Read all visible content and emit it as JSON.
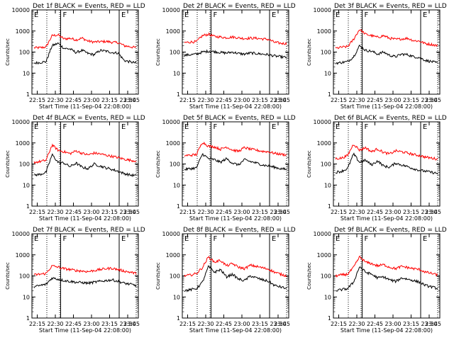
{
  "chart_data": [
    {
      "type": "line",
      "title": "Det 1f BLACK = Events, RED = LLD",
      "xlabel": "Start Time (11-Sep-04 22:08:00)",
      "ylabel": "Counts/sec",
      "x_ticks": [
        "22:15",
        "22:30",
        "22:45",
        "23:00",
        "23:15",
        "23:30",
        "23:45"
      ],
      "y_ticks": [
        "1",
        "10",
        "100",
        "1000",
        "10000"
      ],
      "ylog": true,
      "ylim": [
        1,
        10000
      ],
      "markers": [
        "E",
        "F",
        "E"
      ],
      "series": [
        {
          "color": "#000000",
          "values": [
            30,
            32,
            35,
            200,
            260,
            150,
            140,
            95,
            120,
            85,
            75,
            120,
            110,
            95,
            90,
            40,
            34,
            30
          ]
        },
        {
          "color": "#ff0000",
          "values": [
            160,
            160,
            175,
            600,
            650,
            420,
            450,
            380,
            460,
            330,
            300,
            310,
            320,
            290,
            280,
            200,
            180,
            160
          ]
        }
      ]
    },
    {
      "type": "line",
      "title": "Det 2f BLACK = Events, RED = LLD",
      "xlabel": "Start Time (11-Sep-04 22:08:00)",
      "ylabel": "Counts/sec",
      "x_ticks": [
        "22:15",
        "22:30",
        "22:45",
        "23:00",
        "23:15",
        "23:30",
        "23:45"
      ],
      "y_ticks": [
        "1",
        "10",
        "100",
        "1000",
        "10000"
      ],
      "ylog": true,
      "ylim": [
        1,
        10000
      ],
      "markers": [
        "E",
        "F",
        "E"
      ],
      "series": [
        {
          "color": "#000000",
          "values": [
            70,
            75,
            80,
            100,
            110,
            105,
            95,
            90,
            100,
            85,
            80,
            90,
            85,
            80,
            75,
            65,
            60,
            55
          ]
        },
        {
          "color": "#ff0000",
          "values": [
            280,
            300,
            310,
            600,
            700,
            550,
            520,
            480,
            520,
            470,
            440,
            460,
            450,
            420,
            400,
            290,
            260,
            250
          ]
        }
      ]
    },
    {
      "type": "line",
      "title": "Det 3f BLACK = Events, RED = LLD",
      "xlabel": "Start Time (11-Sep-04 22:08:00)",
      "ylabel": "Counts/sec",
      "x_ticks": [
        "22:15",
        "22:30",
        "22:45",
        "23:00",
        "23:15",
        "23:30",
        "23:45"
      ],
      "y_ticks": [
        "1",
        "10",
        "100",
        "1000",
        "10000"
      ],
      "ylog": true,
      "ylim": [
        1,
        10000
      ],
      "markers": [
        "E",
        "F",
        "E"
      ],
      "series": [
        {
          "color": "#000000",
          "values": [
            30,
            32,
            35,
            60,
            200,
            120,
            110,
            80,
            100,
            70,
            60,
            80,
            75,
            60,
            55,
            40,
            35,
            30
          ]
        },
        {
          "color": "#ff0000",
          "values": [
            150,
            170,
            180,
            400,
            1200,
            700,
            600,
            500,
            600,
            450,
            400,
            420,
            450,
            350,
            330,
            250,
            230,
            200
          ]
        }
      ]
    },
    {
      "type": "line",
      "title": "Det 4f BLACK = Events, RED = LLD",
      "xlabel": "Start Time (11-Sep-04 22:08:00)",
      "ylabel": "Counts/sec",
      "x_ticks": [
        "22:15",
        "22:30",
        "22:45",
        "23:00",
        "23:15",
        "23:30",
        "23:45"
      ],
      "y_ticks": [
        "1",
        "10",
        "100",
        "1000",
        "10000"
      ],
      "ylog": true,
      "ylim": [
        1,
        10000
      ],
      "markers": [
        "E",
        "F",
        "E"
      ],
      "series": [
        {
          "color": "#000000",
          "values": [
            30,
            32,
            40,
            280,
            120,
            110,
            75,
            110,
            70,
            60,
            100,
            80,
            65,
            55,
            45,
            35,
            30,
            28
          ]
        },
        {
          "color": "#ff0000",
          "values": [
            120,
            130,
            150,
            800,
            450,
            380,
            310,
            420,
            320,
            270,
            330,
            300,
            260,
            230,
            200,
            170,
            150,
            140
          ]
        }
      ]
    },
    {
      "type": "line",
      "title": "Det 5f BLACK = Events, RED = LLD",
      "xlabel": "Start Time (11-Sep-04 22:08:00)",
      "ylabel": "Counts/sec",
      "x_ticks": [
        "22:15",
        "22:30",
        "22:45",
        "23:00",
        "23:15",
        "23:30",
        "23:45"
      ],
      "y_ticks": [
        "1",
        "10",
        "100",
        "1000",
        "10000"
      ],
      "ylog": true,
      "ylim": [
        1,
        10000
      ],
      "markers": [
        "E",
        "F",
        "E"
      ],
      "series": [
        {
          "color": "#000000",
          "values": [
            55,
            60,
            65,
            300,
            180,
            160,
            120,
            180,
            110,
            90,
            160,
            130,
            110,
            90,
            80,
            70,
            60,
            55
          ]
        },
        {
          "color": "#ff0000",
          "values": [
            250,
            260,
            280,
            1100,
            700,
            650,
            500,
            650,
            460,
            400,
            600,
            500,
            450,
            400,
            380,
            320,
            290,
            270
          ]
        }
      ]
    },
    {
      "type": "line",
      "title": "Det 6f BLACK = Events, RED = LLD",
      "xlabel": "Start Time (11-Sep-04 22:08:00)",
      "ylabel": "Counts/sec",
      "x_ticks": [
        "22:15",
        "22:30",
        "22:45",
        "23:00",
        "23:15",
        "23:30",
        "23:45"
      ],
      "y_ticks": [
        "1",
        "10",
        "100",
        "1000",
        "10000"
      ],
      "ylog": true,
      "ylim": [
        1,
        10000
      ],
      "markers": [
        "E",
        "F",
        "E"
      ],
      "series": [
        {
          "color": "#000000",
          "values": [
            40,
            45,
            60,
            300,
            120,
            150,
            90,
            140,
            80,
            70,
            110,
            90,
            75,
            60,
            50,
            45,
            40,
            35
          ]
        },
        {
          "color": "#ff0000",
          "values": [
            180,
            190,
            250,
            900,
            450,
            600,
            380,
            520,
            350,
            300,
            420,
            380,
            330,
            280,
            250,
            210,
            190,
            170
          ]
        }
      ]
    },
    {
      "type": "line",
      "title": "Det 7f BLACK = Events, RED = LLD",
      "xlabel": "Start Time (11-Sep-04 22:08:00)",
      "ylabel": "Counts/sec",
      "x_ticks": [
        "22:15",
        "22:30",
        "22:45",
        "23:00",
        "23:15",
        "23:30",
        "23:45"
      ],
      "y_ticks": [
        "1",
        "10",
        "100",
        "1000",
        "10000"
      ],
      "ylog": true,
      "ylim": [
        1,
        10000
      ],
      "markers": [
        "E",
        "F",
        "E"
      ],
      "series": [
        {
          "color": "#000000",
          "values": [
            30,
            35,
            40,
            80,
            70,
            60,
            55,
            50,
            48,
            45,
            50,
            55,
            60,
            65,
            55,
            45,
            40,
            35
          ]
        },
        {
          "color": "#ff0000",
          "values": [
            110,
            120,
            130,
            300,
            260,
            220,
            200,
            180,
            170,
            160,
            180,
            200,
            220,
            230,
            200,
            170,
            150,
            130
          ]
        }
      ]
    },
    {
      "type": "line",
      "title": "Det 8f BLACK = Events, RED = LLD",
      "xlabel": "Start Time (11-Sep-04 22:08:00)",
      "ylabel": "Counts/sec",
      "x_ticks": [
        "22:15",
        "22:30",
        "22:45",
        "23:00",
        "23:15",
        "23:30",
        "23:45"
      ],
      "y_ticks": [
        "1",
        "10",
        "100",
        "1000",
        "10000"
      ],
      "ylog": true,
      "ylim": [
        1,
        10000
      ],
      "markers": [
        "E",
        "F",
        "E"
      ],
      "series": [
        {
          "color": "#000000",
          "values": [
            20,
            22,
            25,
            50,
            280,
            150,
            200,
            90,
            120,
            70,
            60,
            100,
            80,
            65,
            55,
            35,
            30,
            25
          ]
        },
        {
          "color": "#ff0000",
          "values": [
            100,
            110,
            130,
            250,
            800,
            450,
            550,
            300,
            380,
            260,
            220,
            320,
            280,
            240,
            210,
            150,
            120,
            100
          ]
        }
      ]
    },
    {
      "type": "line",
      "title": "Det 9f BLACK = Events, RED = LLD",
      "xlabel": "Start Time (11-Sep-04 22:08:00)",
      "ylabel": "Counts/sec",
      "x_ticks": [
        "22:15",
        "22:30",
        "22:45",
        "23:00",
        "23:15",
        "23:30",
        "23:45"
      ],
      "y_ticks": [
        "1",
        "10",
        "100",
        "1000",
        "10000"
      ],
      "ylog": true,
      "ylim": [
        1,
        10000
      ],
      "markers": [
        "E",
        "F",
        "E"
      ],
      "series": [
        {
          "color": "#000000",
          "values": [
            20,
            22,
            25,
            50,
            280,
            150,
            120,
            80,
            90,
            65,
            55,
            80,
            70,
            60,
            50,
            35,
            30,
            25
          ]
        },
        {
          "color": "#ff0000",
          "values": [
            100,
            110,
            120,
            250,
            800,
            450,
            380,
            300,
            340,
            260,
            220,
            280,
            250,
            220,
            200,
            150,
            130,
            110
          ]
        }
      ]
    }
  ]
}
